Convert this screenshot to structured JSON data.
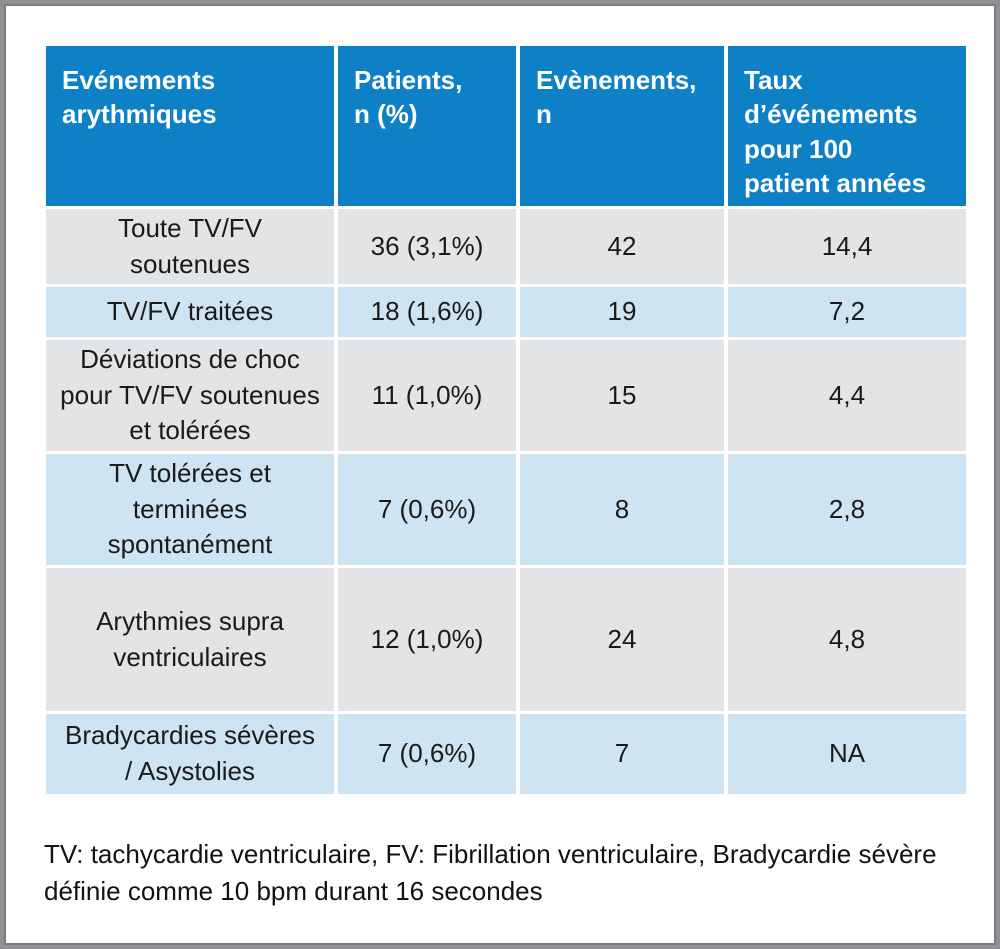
{
  "chart_data": {
    "type": "table",
    "columns": [
      "Evénements\narythmiques",
      "Patients,\nn (%)",
      "Evènements,\nn",
      "Taux\nd’événements\npour 100\npatient années"
    ],
    "rows": [
      [
        "Toute TV/FV\nsoutenues",
        "36 (3,1%)",
        "42",
        "14,4"
      ],
      [
        "TV/FV traitées",
        "18 (1,6%)",
        "19",
        "7,2"
      ],
      [
        "Déviations de choc\npour TV/FV soutenues\net tolérées",
        "11 (1,0%)",
        "15",
        "4,4"
      ],
      [
        "TV tolérées et\nterminées\nspontanément",
        "7 (0,6%)",
        "8",
        "2,8"
      ],
      [
        "Arythmies supra\nventriculaires",
        "12 (1,0%)",
        "24",
        "4,8"
      ],
      [
        "Bradycardies sévères\n/ Asystolies",
        "7 (0,6%)",
        "7",
        "NA"
      ]
    ],
    "footnote": "TV: tachycardie ventriculaire, FV: Fibrillation ventriculaire, Bradycardie sévère\ndéfinie comme 10 bpm durant 16 secondes",
    "colors": {
      "header_bg": "#0e80c5",
      "header_text": "#ffffff",
      "row_gray": "#e3e4e6",
      "row_blue": "#cfe4f2",
      "body_text": "#1a1a1a"
    },
    "layout": {
      "grid": "off",
      "legend": "none"
    }
  }
}
